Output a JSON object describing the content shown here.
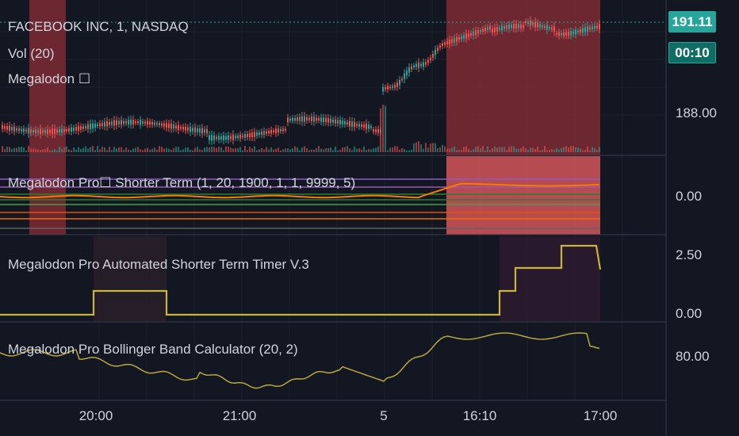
{
  "colors": {
    "background": "#131722",
    "grid": "#1e222d",
    "divider": "#363c4e",
    "candle_up": "#26a69a",
    "candle_down": "#ef5350",
    "highlight_red": "#8b2e35",
    "highlight_pink": "#e05a5e",
    "timer_line": "#c9b53a",
    "bb_line": "#b8a640",
    "accent_teal": "#26a69a"
  },
  "panes": {
    "main": {
      "legend": {
        "symbol": "FACEBOOK INC, 1, NASDAQ",
        "volume": "Vol (20)",
        "indicator": "Megalodon ☐"
      },
      "last_price": "191.11",
      "countdown": "00:10",
      "price_labels": [
        "188.00"
      ]
    },
    "shorter_term": {
      "legend": "Megalodon Pro☐  Shorter Term (1, 20, 1900, 1, 1, 9999, 5)",
      "axis_labels": [
        "0.00"
      ]
    },
    "timer": {
      "legend": "Megalodon Pro Automated Shorter Term Timer V.3",
      "axis_labels": [
        "2.50",
        "0.00"
      ]
    },
    "bollinger": {
      "legend": "Megalodon Pro Bollinger Band Calculator (20, 2)",
      "axis_labels": [
        "80.00"
      ]
    }
  },
  "time_axis": {
    "labels": [
      "20:00",
      "21:00",
      "5",
      "16:10",
      "17:00"
    ]
  }
}
